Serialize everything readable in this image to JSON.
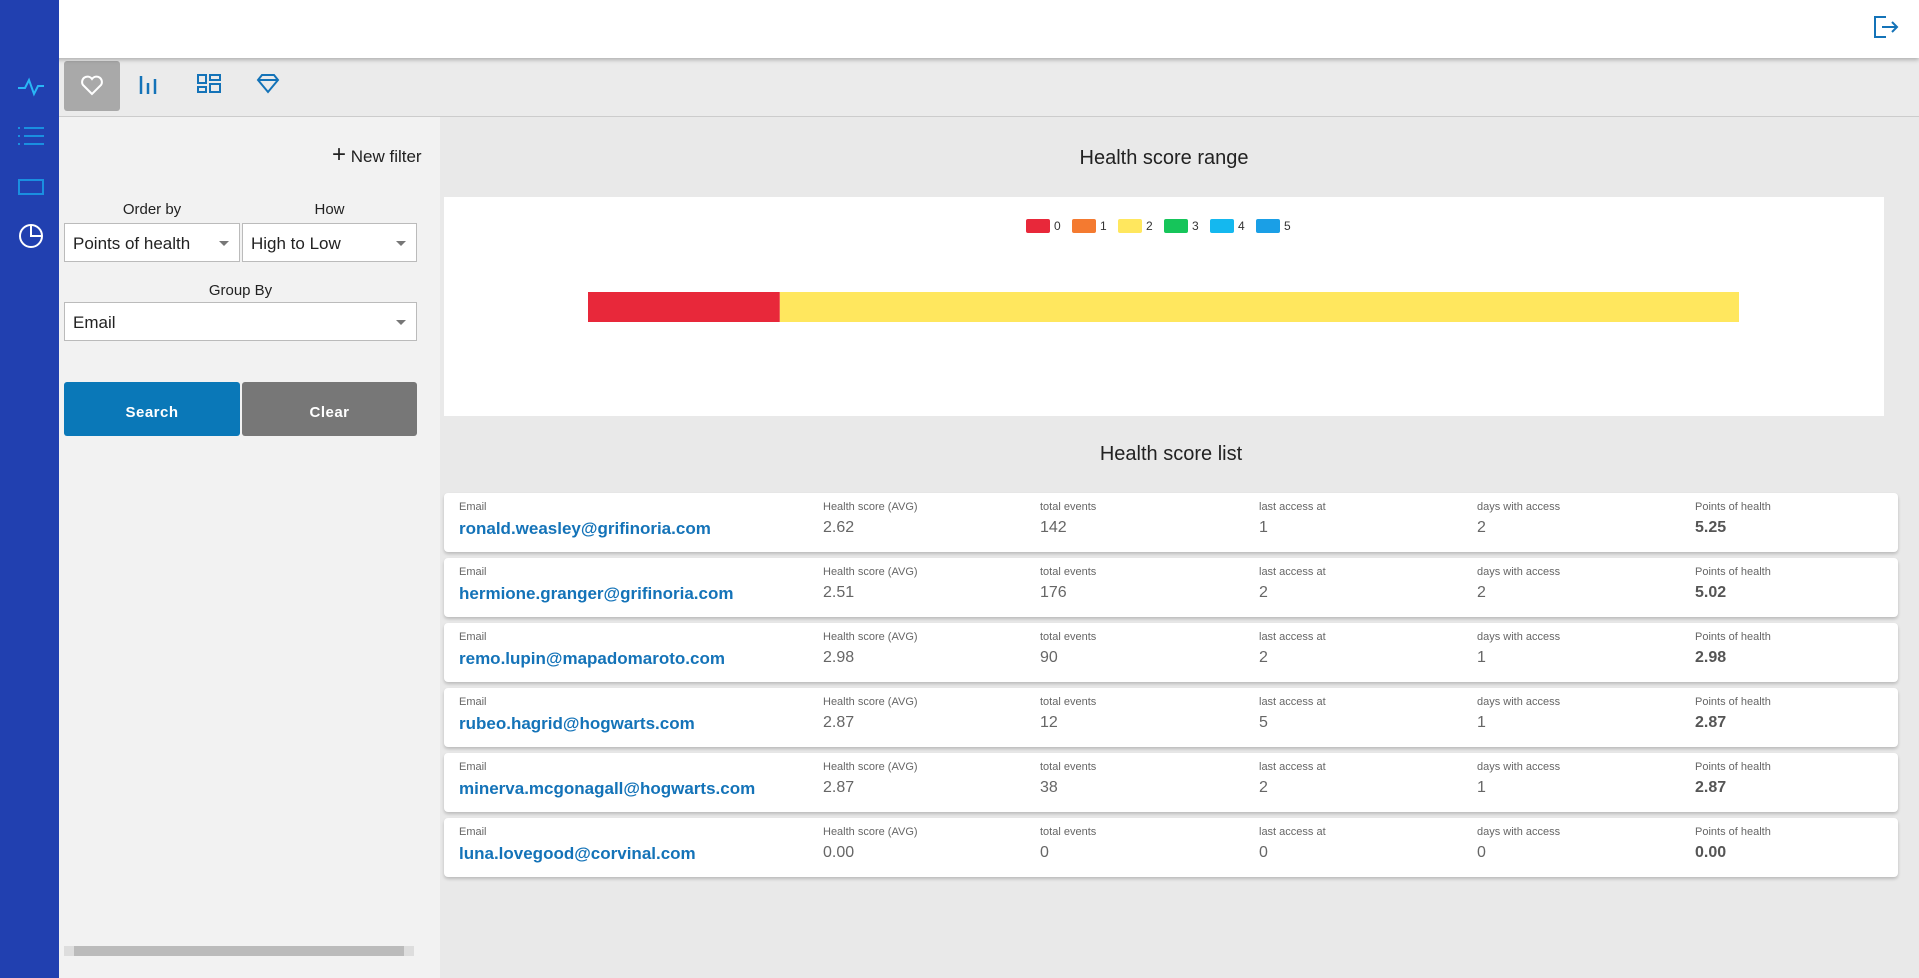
{
  "filters": {
    "new_filter": "New filter",
    "order_by": {
      "label": "Order by",
      "value": "Points of health"
    },
    "how": {
      "label": "How",
      "value": "High to Low"
    },
    "group_by": {
      "label": "Group By",
      "value": "Email"
    },
    "search": "Search",
    "clear": "Clear"
  },
  "chart_data": {
    "type": "stacked-bar",
    "title": "Health score range",
    "series": [
      {
        "name": "0",
        "color": "#e8283a",
        "values": [
          1
        ]
      },
      {
        "name": "1",
        "color": "#f47a30",
        "values": [
          0
        ]
      },
      {
        "name": "2",
        "color": "#ffe75e",
        "values": [
          5
        ]
      },
      {
        "name": "3",
        "color": "#16c55a",
        "values": [
          0
        ]
      },
      {
        "name": "4",
        "color": "#14b8ef",
        "values": [
          0
        ]
      },
      {
        "name": "5",
        "color": "#1a9fe6",
        "values": [
          0
        ]
      }
    ]
  },
  "list": {
    "title": "Health score list",
    "columns": [
      "Email",
      "Health score (AVG)",
      "total events",
      "last access at",
      "days with access",
      "Points of health"
    ],
    "rows": [
      [
        "ronald.weasley@grifinoria.com",
        "2.62",
        "142",
        "1",
        "2",
        "5.25"
      ],
      [
        "hermione.granger@grifinoria.com",
        "2.51",
        "176",
        "2",
        "2",
        "5.02"
      ],
      [
        "remo.lupin@mapadomaroto.com",
        "2.98",
        "90",
        "2",
        "1",
        "2.98"
      ],
      [
        "rubeo.hagrid@hogwarts.com",
        "2.87",
        "12",
        "5",
        "1",
        "2.87"
      ],
      [
        "minerva.mcgonagall@hogwarts.com",
        "2.87",
        "38",
        "2",
        "1",
        "2.87"
      ],
      [
        "luna.lovegood@corvinal.com",
        "0.00",
        "0",
        "0",
        "0",
        "0.00"
      ]
    ]
  }
}
